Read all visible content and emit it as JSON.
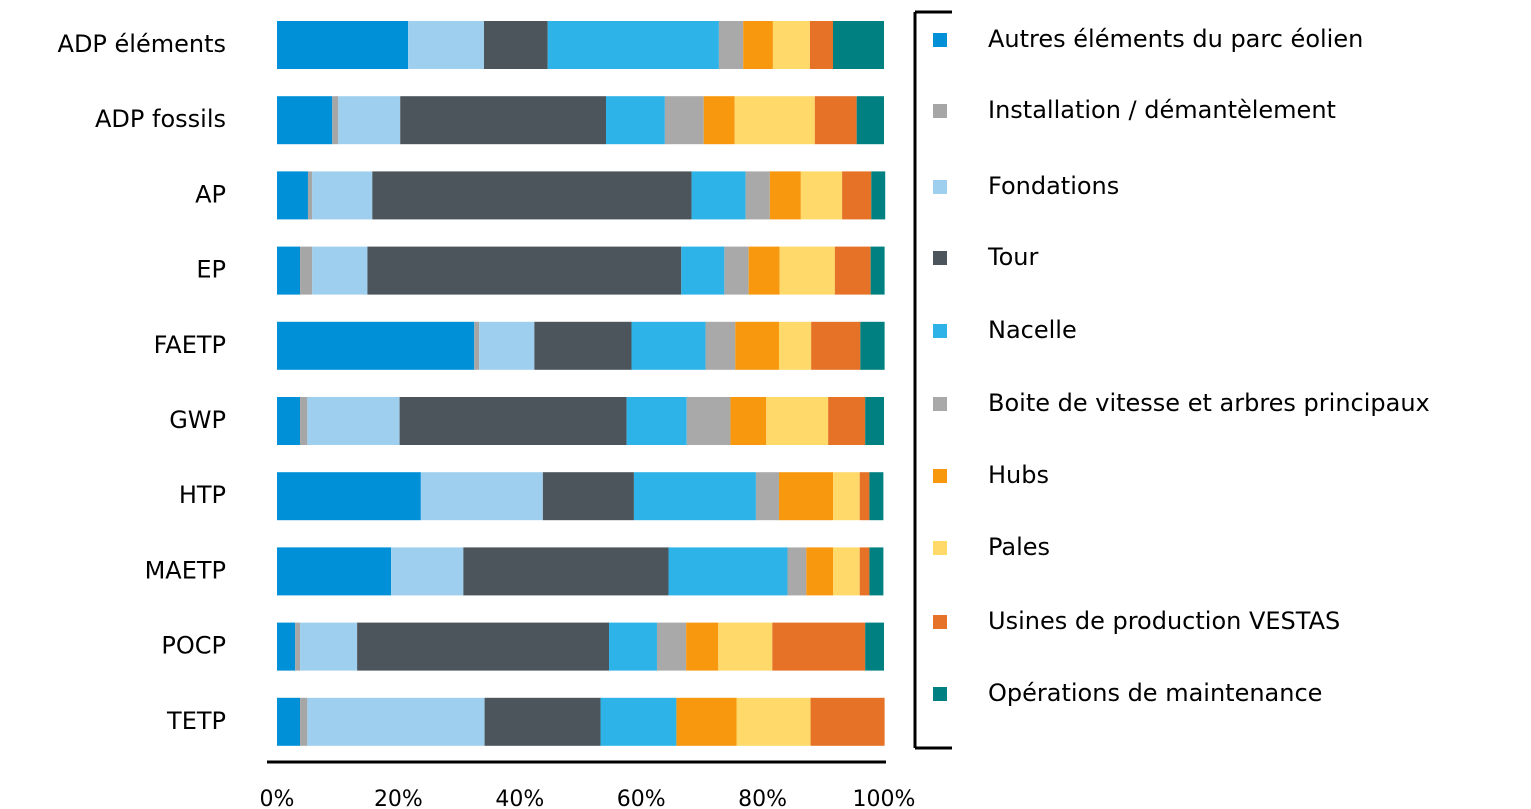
{
  "chart_data": {
    "type": "stacked-barh",
    "categories": [
      "ADP éléments",
      "ADP fossils",
      "AP",
      "EP",
      "FAETP",
      "GWP",
      "HTP",
      "MAETP",
      "POCP",
      "TETP"
    ],
    "series": [
      {
        "name": "Autres éléments du parc éolien",
        "color": "#0090d8",
        "values": [
          21.6,
          9.1,
          5.1,
          3.8,
          32.5,
          3.8,
          23.7,
          18.8,
          3.0,
          3.8
        ]
      },
      {
        "name": "Installation / démantèlement",
        "color": "#a6a6a6",
        "values": [
          0,
          1.0,
          0.7,
          2.0,
          0.8,
          1.2,
          0,
          0,
          0.8,
          1.2
        ]
      },
      {
        "name": "Fondations",
        "color": "#9fcfee",
        "values": [
          12.5,
          10.2,
          9.9,
          9.1,
          9.1,
          15.2,
          20.1,
          11.9,
          9.4,
          29.2
        ]
      },
      {
        "name": "Tour",
        "color": "#4b555b",
        "values": [
          10.5,
          33.9,
          52.6,
          51.7,
          16.0,
          37.4,
          15.0,
          33.8,
          41.5,
          19.1
        ]
      },
      {
        "name": "Nacelle",
        "color": "#2db3e8",
        "values": [
          28.2,
          9.7,
          8.9,
          7.1,
          12.2,
          9.9,
          20.1,
          19.6,
          7.9,
          12.5
        ]
      },
      {
        "name": "Boite de vitesse et arbres principaux",
        "color": "#a9a9a9",
        "values": [
          4.0,
          6.4,
          4.0,
          4.0,
          4.9,
          7.2,
          3.8,
          3.1,
          4.8,
          0
        ]
      },
      {
        "name": "Hubs",
        "color": "#f8980f",
        "values": [
          4.9,
          5.1,
          5.1,
          5.1,
          7.2,
          5.9,
          8.9,
          4.4,
          5.3,
          9.9
        ]
      },
      {
        "name": "Pales",
        "color": "#ffd96a",
        "values": [
          6.1,
          13.2,
          6.8,
          9.1,
          5.3,
          10.2,
          4.4,
          4.4,
          8.9,
          12.2
        ]
      },
      {
        "name": "Usines de production VESTAS",
        "color": "#e57226",
        "values": [
          3.8,
          6.9,
          4.8,
          5.9,
          8.1,
          6.1,
          1.6,
          1.6,
          15.3,
          12.2
        ]
      },
      {
        "name": "Opérations de maintenance",
        "color": "#008080",
        "values": [
          8.4,
          4.5,
          2.3,
          2.3,
          4.0,
          3.1,
          2.3,
          2.3,
          3.1,
          0
        ]
      }
    ],
    "xlim": [
      0,
      100
    ],
    "xticks": [
      {
        "value": 0,
        "label": "0%"
      },
      {
        "value": 20,
        "label": "20%"
      },
      {
        "value": 40,
        "label": "40%"
      },
      {
        "value": 60,
        "label": "60%"
      },
      {
        "value": 80,
        "label": "80%"
      },
      {
        "value": 100,
        "label": "100%"
      }
    ]
  }
}
